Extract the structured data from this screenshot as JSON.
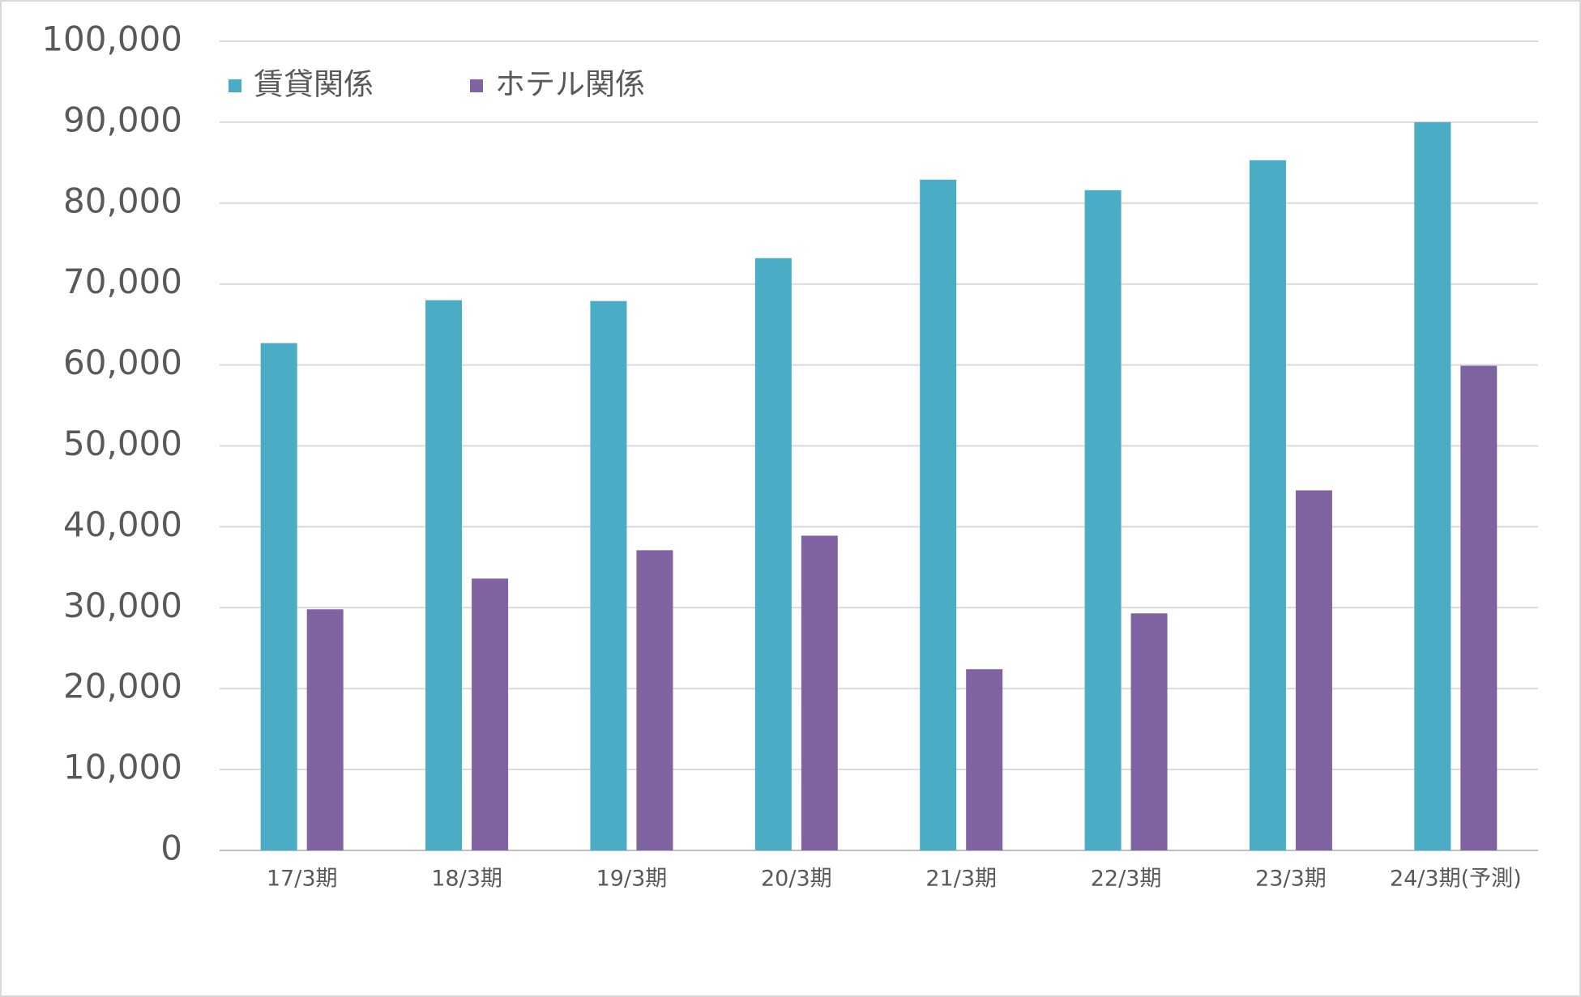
{
  "chart_data": {
    "type": "bar",
    "categories": [
      "17/3期",
      "18/3期",
      "19/3期",
      "20/3期",
      "21/3期",
      "22/3期",
      "23/3期",
      "24/3期(予測)"
    ],
    "series": [
      {
        "name": "賃貸関係",
        "color": "#4bacc6",
        "values": [
          62700,
          68000,
          67900,
          73200,
          82900,
          81600,
          85300,
          90000
        ]
      },
      {
        "name": "ホテル関係",
        "color": "#8064a2",
        "values": [
          29800,
          33600,
          37100,
          38900,
          22400,
          29300,
          44500,
          59900
        ]
      }
    ],
    "ylim": [
      0,
      100000
    ],
    "yticks": [
      0,
      {
        "value": 10000,
        "label": "10,000"
      },
      {
        "value": 20000,
        "label": "20,000"
      },
      {
        "value": 30000,
        "label": "30,000"
      },
      {
        "value": 40000,
        "label": "40,000"
      },
      {
        "value": 50000,
        "label": "50,000"
      },
      {
        "value": 60000,
        "label": "60,000"
      },
      {
        "value": 70000,
        "label": "70,000"
      },
      {
        "value": 80000,
        "label": "80,000"
      },
      {
        "value": 90000,
        "label": "90,000"
      },
      {
        "value": 100000,
        "label": "100,000"
      }
    ],
    "grid": true,
    "legend": "top-left"
  }
}
